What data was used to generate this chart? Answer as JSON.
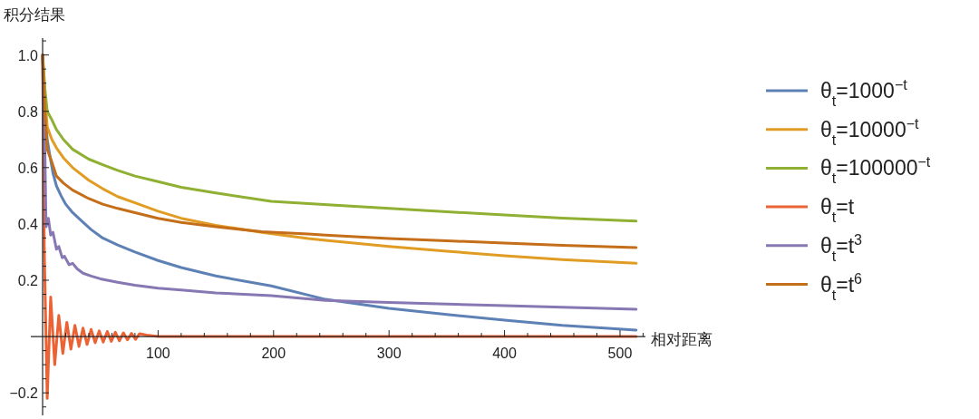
{
  "chart_data": {
    "type": "line",
    "ylabel": "积分结果",
    "xlabel": "相对距离",
    "xlim": [
      0,
      522
    ],
    "ylim": [
      -0.28,
      1.06
    ],
    "xticks": [
      {
        "value": 20,
        "label": null
      },
      {
        "value": 40,
        "label": null
      },
      {
        "value": 60,
        "label": null
      },
      {
        "value": 80,
        "label": null
      },
      100,
      {
        "value": 120,
        "label": null
      },
      {
        "value": 140,
        "label": null
      },
      {
        "value": 160,
        "label": null
      },
      {
        "value": 180,
        "label": null
      },
      200,
      {
        "value": 220,
        "label": null
      },
      {
        "value": 240,
        "label": null
      },
      {
        "value": 260,
        "label": null
      },
      {
        "value": 280,
        "label": null
      },
      300,
      {
        "value": 320,
        "label": null
      },
      {
        "value": 340,
        "label": null
      },
      {
        "value": 360,
        "label": null
      },
      {
        "value": 380,
        "label": null
      },
      400,
      {
        "value": 420,
        "label": null
      },
      {
        "value": 440,
        "label": null
      },
      {
        "value": 460,
        "label": null
      },
      {
        "value": 480,
        "label": null
      },
      500,
      {
        "value": 520,
        "label": null
      }
    ],
    "yticks": [
      {
        "value": -0.25,
        "label": null
      },
      {
        "value": -0.2,
        "label": "−0.2"
      },
      {
        "value": -0.15,
        "label": null
      },
      {
        "value": -0.1,
        "label": null
      },
      {
        "value": -0.05,
        "label": null
      },
      {
        "value": 0.05,
        "label": null
      },
      {
        "value": 0.1,
        "label": null
      },
      {
        "value": 0.15,
        "label": null
      },
      {
        "value": 0.2,
        "label": "0.2"
      },
      {
        "value": 0.25,
        "label": null
      },
      {
        "value": 0.3,
        "label": null
      },
      {
        "value": 0.35,
        "label": null
      },
      {
        "value": 0.4,
        "label": "0.4"
      },
      {
        "value": 0.45,
        "label": null
      },
      {
        "value": 0.5,
        "label": null
      },
      {
        "value": 0.55,
        "label": null
      },
      {
        "value": 0.6,
        "label": "0.6"
      },
      {
        "value": 0.65,
        "label": null
      },
      {
        "value": 0.7,
        "label": null
      },
      {
        "value": 0.75,
        "label": null
      },
      {
        "value": 0.8,
        "label": "0.8"
      },
      {
        "value": 0.85,
        "label": null
      },
      {
        "value": 0.9,
        "label": null
      },
      {
        "value": 0.95,
        "label": null
      },
      {
        "value": 1.0,
        "label": "1.0"
      },
      {
        "value": 1.05,
        "label": null
      }
    ],
    "grid": false,
    "legend": "right",
    "marker": "none",
    "line_style": "solid",
    "series": [
      {
        "name": "θ$_{t}$=1000$^{−t}$",
        "color": "#5e81b5",
        "x": [
          0,
          2,
          4,
          6,
          9,
          12,
          16,
          20,
          26,
          34,
          42,
          52,
          65,
          80,
          100,
          120,
          150,
          198,
          245,
          300,
          350,
          400,
          450,
          514
        ],
        "values": [
          1.0,
          0.8,
          0.7,
          0.65,
          0.58,
          0.535,
          0.5,
          0.47,
          0.44,
          0.41,
          0.38,
          0.35,
          0.325,
          0.3,
          0.27,
          0.245,
          0.215,
          0.18,
          0.132,
          0.1,
          0.078,
          0.058,
          0.04,
          0.023
        ]
      },
      {
        "name": "θ$_{t}$=10000$^{−t}$",
        "color": "#e19c24",
        "x": [
          0,
          2,
          4,
          8,
          12,
          18,
          26,
          40,
          52,
          65,
          80,
          100,
          120,
          150,
          190,
          230,
          245,
          300,
          350,
          400,
          450,
          514
        ],
        "values": [
          1.0,
          0.85,
          0.745,
          0.7,
          0.67,
          0.635,
          0.6,
          0.555,
          0.525,
          0.497,
          0.475,
          0.445,
          0.42,
          0.395,
          0.37,
          0.348,
          0.342,
          0.32,
          0.303,
          0.287,
          0.273,
          0.26
        ]
      },
      {
        "name": "θ$_{t}$=100000$^{−t}$",
        "color": "#8fb032",
        "x": [
          0,
          2,
          4,
          8,
          12,
          18,
          26,
          40,
          52,
          65,
          80,
          100,
          120,
          150,
          198,
          250,
          300,
          350,
          400,
          450,
          514
        ],
        "values": [
          1.0,
          0.88,
          0.8,
          0.77,
          0.735,
          0.7,
          0.665,
          0.63,
          0.61,
          0.59,
          0.57,
          0.55,
          0.53,
          0.51,
          0.48,
          0.467,
          0.455,
          0.443,
          0.432,
          0.421,
          0.41
        ]
      },
      {
        "name": "θ$_{t}$=t",
        "color": "#eb6235",
        "x": [
          0,
          1.5,
          4,
          7,
          10.5,
          14,
          17.5,
          21,
          24.5,
          28,
          31.5,
          35,
          38.5,
          42,
          45.5,
          49,
          52.5,
          56,
          59.5,
          63,
          66.5,
          70,
          73.5,
          77,
          80.5,
          84,
          90,
          100,
          200,
          300,
          400,
          514
        ],
        "values": [
          1.0,
          0.3,
          -0.22,
          0.14,
          -0.1,
          0.075,
          -0.06,
          0.05,
          -0.045,
          0.04,
          -0.035,
          0.03,
          -0.028,
          0.025,
          -0.022,
          0.02,
          -0.02,
          0.018,
          -0.017,
          0.015,
          -0.015,
          0.013,
          -0.012,
          0.011,
          -0.01,
          0.01,
          0.005,
          0,
          0,
          0,
          0,
          0
        ]
      },
      {
        "name": "θ$_{t}$=t$^{3}$",
        "color": "#8778b3",
        "x": [
          0,
          1,
          2,
          3,
          5,
          7,
          9,
          12,
          14,
          17,
          19,
          23,
          26,
          30,
          35,
          42,
          50,
          65,
          80,
          100,
          120,
          150,
          198,
          245,
          300,
          350,
          400,
          450,
          514
        ],
        "values": [
          1.0,
          0.75,
          0.65,
          0.39,
          0.42,
          0.36,
          0.37,
          0.31,
          0.32,
          0.28,
          0.285,
          0.255,
          0.26,
          0.24,
          0.225,
          0.215,
          0.205,
          0.193,
          0.182,
          0.172,
          0.165,
          0.155,
          0.145,
          0.128,
          0.121,
          0.115,
          0.11,
          0.104,
          0.097
        ]
      },
      {
        "name": "θ$_{t}$=t$^{6}$",
        "color": "#c56e1a",
        "x": [
          0,
          2,
          4,
          8,
          12,
          18,
          26,
          40,
          52,
          65,
          80,
          100,
          120,
          150,
          190,
          230,
          245,
          300,
          350,
          400,
          450,
          514
        ],
        "values": [
          1.0,
          0.8,
          0.665,
          0.62,
          0.57,
          0.545,
          0.52,
          0.49,
          0.47,
          0.455,
          0.44,
          0.42,
          0.405,
          0.39,
          0.372,
          0.364,
          0.36,
          0.348,
          0.34,
          0.332,
          0.324,
          0.316
        ]
      }
    ]
  }
}
